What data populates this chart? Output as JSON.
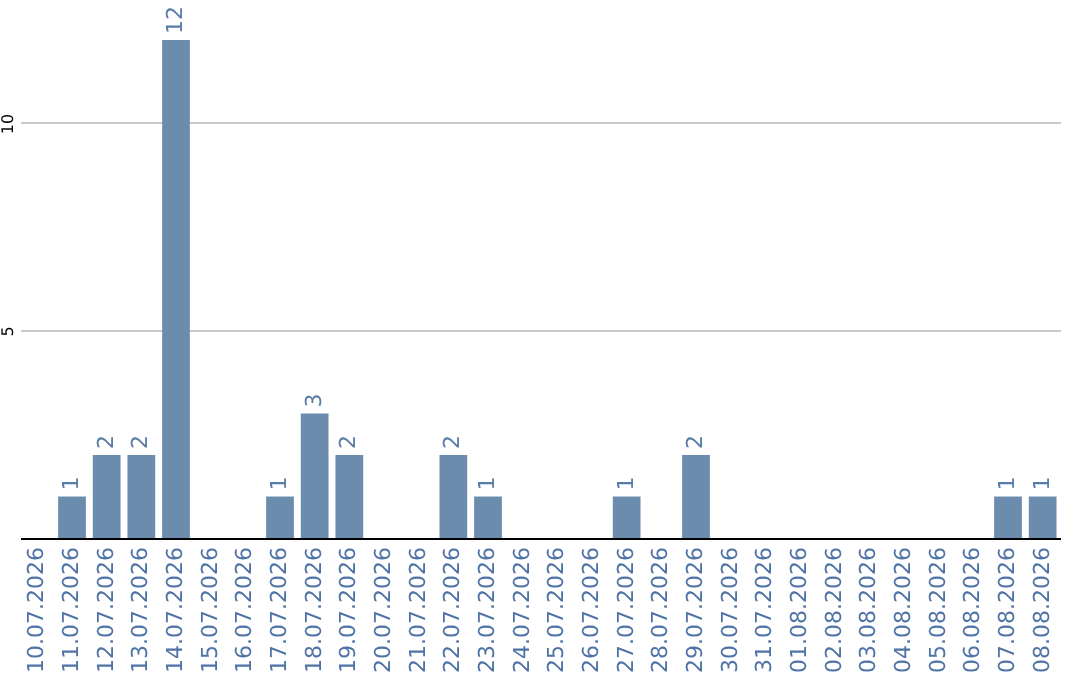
{
  "chart_data": {
    "type": "bar",
    "categories": [
      "10.07.2026",
      "11.07.2026",
      "12.07.2026",
      "13.07.2026",
      "14.07.2026",
      "15.07.2026",
      "16.07.2026",
      "17.07.2026",
      "18.07.2026",
      "19.07.2026",
      "20.07.2026",
      "21.07.2026",
      "22.07.2026",
      "23.07.2026",
      "24.07.2026",
      "25.07.2026",
      "26.07.2026",
      "27.07.2026",
      "28.07.2026",
      "29.07.2026",
      "30.07.2026",
      "31.07.2026",
      "01.08.2026",
      "02.08.2026",
      "03.08.2026",
      "04.08.2026",
      "05.08.2026",
      "06.08.2026",
      "07.08.2026",
      "08.08.2026"
    ],
    "values": [
      0,
      1,
      2,
      2,
      12,
      0,
      0,
      1,
      3,
      2,
      0,
      0,
      2,
      1,
      0,
      0,
      0,
      1,
      0,
      2,
      0,
      0,
      0,
      0,
      0,
      0,
      0,
      0,
      1,
      1
    ],
    "value_labels": [
      null,
      "1",
      "2",
      "2",
      "12",
      null,
      null,
      "1",
      "3",
      "2",
      null,
      null,
      "2",
      "1",
      null,
      null,
      null,
      "1",
      null,
      "2",
      null,
      null,
      null,
      null,
      null,
      null,
      null,
      null,
      "1",
      "1"
    ],
    "color": "#6b8cad",
    "ylim": [
      0,
      12
    ],
    "yticks": [
      5,
      10
    ],
    "grid": "y"
  }
}
